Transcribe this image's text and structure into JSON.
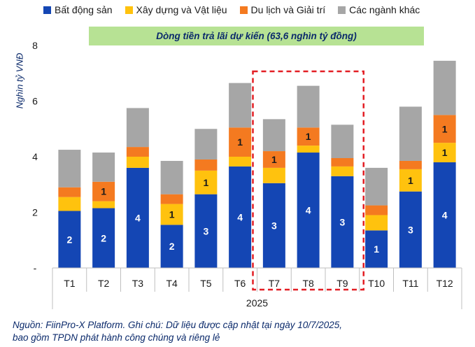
{
  "legend": {
    "items": [
      {
        "label": "Bất động sản",
        "color": "#1446b4"
      },
      {
        "label": "Xây dựng và Vật liệu",
        "color": "#ffc20e"
      },
      {
        "label": "Du lịch và Giải trí",
        "color": "#f47a20"
      },
      {
        "label": "Các ngành khác",
        "color": "#a6a6a6"
      }
    ]
  },
  "banner": "Dòng tiền trả lãi dự kiến (63,6 nghìn tỷ đồng)",
  "source": {
    "line1": "Nguồn: FiinPro-X Platform. Ghi chú: Dữ liệu được cập nhật tại ngày 10/7/2025,",
    "line2": "bao gồm TPDN phát hành công chúng và riêng lẻ"
  },
  "chart_data": {
    "type": "bar",
    "stacked": true,
    "ylabel": "Nghìn tỷ VNĐ",
    "xlabel": "2025",
    "ylim": [
      0,
      8
    ],
    "yticks": [
      "-",
      "2",
      "4",
      "6",
      "8"
    ],
    "grid": false,
    "legend_position": "top",
    "categories": [
      "T1",
      "T2",
      "T3",
      "T4",
      "T5",
      "T6",
      "T7",
      "T8",
      "T9",
      "T10",
      "T11",
      "T12"
    ],
    "highlighted_categories": [
      "T7",
      "T8",
      "T9"
    ],
    "series": [
      {
        "name": "Bất động sản",
        "color": "#1446b4",
        "values": [
          2.05,
          2.15,
          3.6,
          1.55,
          2.65,
          3.65,
          3.05,
          4.15,
          3.3,
          1.35,
          2.75,
          3.8
        ],
        "labels": [
          "2",
          "2",
          "4",
          "2",
          "3",
          "4",
          "3",
          "4",
          "3",
          "1",
          "3",
          "4"
        ]
      },
      {
        "name": "Xây dựng và Vật liệu",
        "color": "#ffc20e",
        "values": [
          0.5,
          0.25,
          0.4,
          0.75,
          0.85,
          0.35,
          0.55,
          0.25,
          0.35,
          0.55,
          0.8,
          0.7
        ],
        "labels": [
          "",
          "",
          "",
          "1",
          "1",
          "",
          "",
          "",
          "",
          "",
          "1",
          "1"
        ]
      },
      {
        "name": "Du lịch và Giải trí",
        "color": "#f47a20",
        "values": [
          0.35,
          0.7,
          0.35,
          0.35,
          0.4,
          1.05,
          0.6,
          0.65,
          0.3,
          0.35,
          0.3,
          1.0
        ],
        "labels": [
          "",
          "1",
          "",
          "",
          "",
          "1",
          "1",
          "1",
          "",
          "",
          "",
          "1"
        ]
      },
      {
        "name": "Các ngành khác",
        "color": "#a6a6a6",
        "values": [
          1.35,
          1.05,
          1.4,
          1.2,
          1.1,
          1.6,
          1.15,
          1.5,
          1.2,
          1.35,
          1.95,
          1.95
        ],
        "labels": [
          "",
          "",
          "",
          "",
          "",
          "",
          "",
          "",
          "",
          "",
          "",
          ""
        ]
      }
    ]
  }
}
